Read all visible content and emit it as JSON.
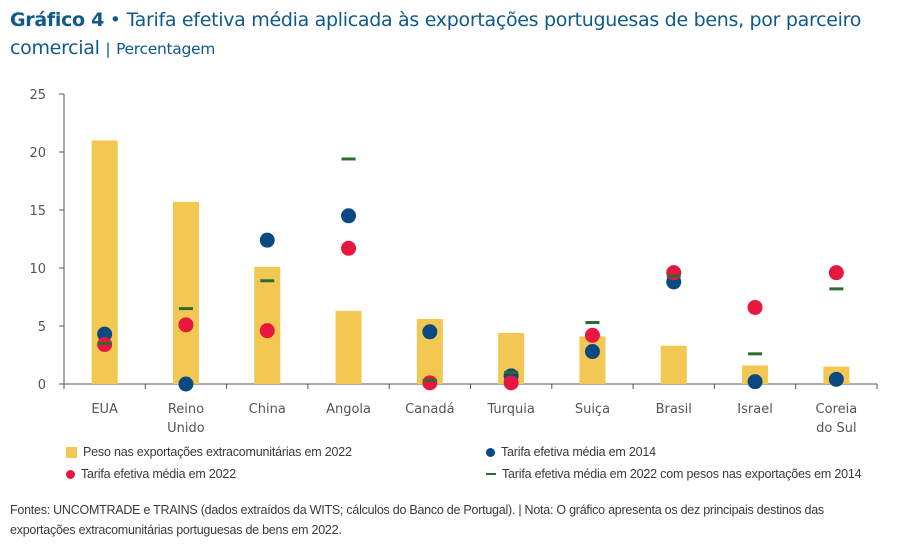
{
  "header": {
    "label": "Gráfico 4",
    "bullet": "•",
    "title": "Tarifa efetiva média aplicada às exportações portuguesas de bens, por parceiro comercial",
    "separator": "|",
    "unit": "Percentagem"
  },
  "colors": {
    "bar": "#f2c752",
    "tariff_2014": "#0b4a80",
    "tariff_2022": "#e8173f",
    "tariff_2022_w2014": "#2e6b32",
    "axis": "#555555",
    "title": "#0f5a8a"
  },
  "chart_data": {
    "type": "bar",
    "title": "Tarifa efetiva média aplicada às exportações portuguesas de bens, por parceiro comercial",
    "xlabel": "",
    "ylabel": "Percentagem",
    "ylim": [
      0,
      25
    ],
    "yticks": [
      0,
      5,
      10,
      15,
      20,
      25
    ],
    "grid": false,
    "categories": [
      [
        "EUA"
      ],
      [
        "Reino",
        "Unido"
      ],
      [
        "China"
      ],
      [
        "Angola"
      ],
      [
        "Canadá"
      ],
      [
        "Turquia"
      ],
      [
        "Suiça"
      ],
      [
        "Brasil"
      ],
      [
        "Israel"
      ],
      [
        "Coreia",
        "do Sul"
      ]
    ],
    "series": [
      {
        "name": "Peso nas exportações extracomunitárias em 2022",
        "kind": "bar",
        "values": [
          21.0,
          15.7,
          10.1,
          6.3,
          5.6,
          4.4,
          4.1,
          3.3,
          1.6,
          1.5
        ]
      },
      {
        "name": "Tarifa efetiva média em 2014",
        "kind": "dot",
        "values": [
          4.3,
          0.0,
          12.4,
          14.5,
          4.5,
          0.7,
          2.8,
          8.8,
          0.2,
          0.4
        ]
      },
      {
        "name": "Tarifa efetiva média em 2022",
        "kind": "dot",
        "values": [
          3.4,
          5.1,
          4.6,
          11.7,
          0.1,
          0.1,
          4.2,
          9.6,
          6.6,
          9.6
        ]
      },
      {
        "name": "Tarifa efetiva média em 2022 com pesos nas exportações em 2014",
        "kind": "dash",
        "values": [
          3.5,
          6.5,
          8.9,
          19.4,
          0.3,
          1.0,
          5.3,
          9.3,
          2.6,
          8.2
        ]
      }
    ],
    "legend": "bottom"
  },
  "legend": {
    "items": [
      {
        "label": "Peso nas exportações extracomunitárias em 2022",
        "swatch": "bar"
      },
      {
        "label": "Tarifa efetiva média em 2014",
        "swatch": "dot-2014"
      },
      {
        "label": "Tarifa efetiva média em 2022",
        "swatch": "dot-2022"
      },
      {
        "label": "Tarifa efetiva média em 2022 com pesos nas exportações em 2014",
        "swatch": "dash"
      }
    ]
  },
  "footer": {
    "line1": "Fontes: UNCOMTRADE e TRAINS (dados extraídos da WITS; cálculos do Banco de Portugal).  |  Nota: O gráfico apresenta os dez principais destinos das",
    "line2": "exportações extracomunitárias portuguesas de bens em 2022."
  }
}
